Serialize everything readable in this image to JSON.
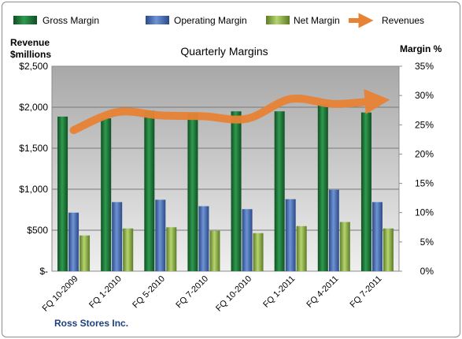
{
  "chart_data": {
    "type": "bar",
    "title": "Quarterly Margins",
    "company": "Ross Stores Inc.",
    "left_axis_label_line1": "Revenue",
    "left_axis_label_line2": "$millions",
    "right_axis_label": "Margin %",
    "categories": [
      "FQ 10-2009",
      "FQ 1-2010",
      "FQ 5-2010",
      "FQ 7-2010",
      "FQ 10-2010",
      "FQ 1-2011",
      "FQ 4-2011",
      "FQ 7-2011"
    ],
    "left_ylim": [
      0,
      2500
    ],
    "left_ticks": [
      "$-",
      "$500",
      "$1,000",
      "$1,500",
      "$2,000",
      "$2,500"
    ],
    "right_ylim": [
      0,
      35
    ],
    "right_ticks": [
      "0%",
      "5%",
      "10%",
      "15%",
      "20%",
      "25%",
      "30%",
      "35%"
    ],
    "legend_position": "top",
    "grid": true,
    "series": [
      {
        "name": "Gross Margin",
        "axis": "right",
        "kind": "bar",
        "color": "#1e7a3a",
        "values": [
          26.4,
          26.1,
          27.4,
          27.0,
          27.3,
          27.3,
          28.6,
          27.1
        ]
      },
      {
        "name": "Operating Margin",
        "axis": "right",
        "kind": "bar",
        "color": "#4a6fb5",
        "values": [
          10.0,
          11.8,
          12.2,
          11.1,
          10.6,
          12.3,
          13.9,
          11.8
        ]
      },
      {
        "name": "Net Margin",
        "axis": "right",
        "kind": "bar",
        "color": "#8fb34a",
        "values": [
          6.1,
          7.3,
          7.5,
          6.9,
          6.5,
          7.7,
          8.4,
          7.3
        ]
      },
      {
        "name": "Revenues",
        "axis": "left",
        "kind": "line",
        "color": "#e07b30",
        "values": [
          1720,
          1940,
          1900,
          1890,
          1860,
          2100,
          2040,
          2080
        ]
      }
    ]
  }
}
